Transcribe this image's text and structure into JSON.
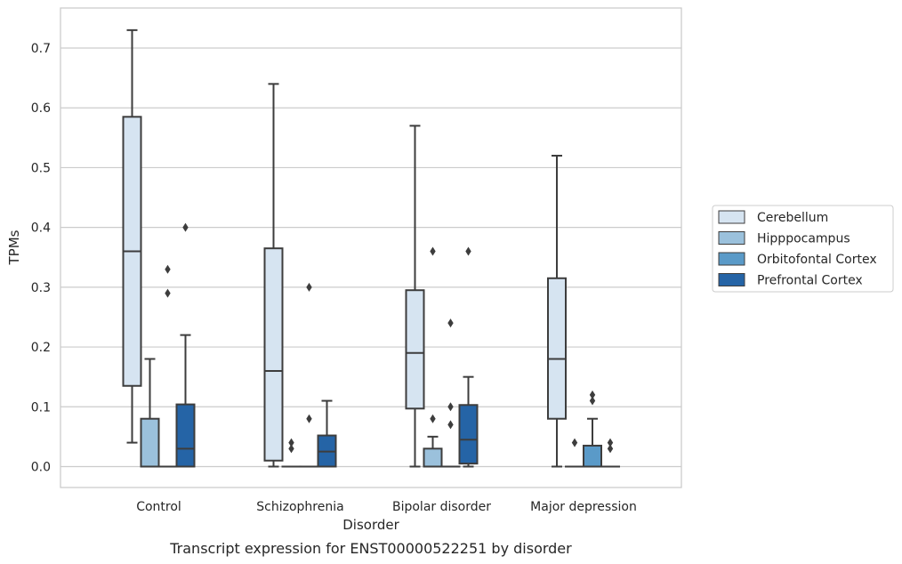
{
  "chart_data": {
    "type": "box",
    "caption": "Transcript expression for ENST00000522251 by disorder",
    "xlabel": "Disorder",
    "ylabel": "TPMs",
    "categories": [
      "Control",
      "Schizophrenia",
      "Bipolar disorder",
      "Major depression"
    ],
    "ylim": [
      -0.035,
      0.767
    ],
    "yticks": [
      0.0,
      0.1,
      0.2,
      0.3,
      0.4,
      0.5,
      0.6,
      0.7
    ],
    "ytick_labels": [
      "0.0",
      "0.1",
      "0.2",
      "0.3",
      "0.4",
      "0.5",
      "0.6",
      "0.7"
    ],
    "grid": "horizontal",
    "legend": {
      "placement": "right"
    },
    "series": [
      {
        "name": "Cerebellum",
        "color": "#d6e4f1",
        "boxes": [
          {
            "whislo": 0.04,
            "q1": 0.135,
            "median": 0.36,
            "q3": 0.585,
            "whishi": 0.73,
            "fliers": []
          },
          {
            "whislo": 0.0,
            "q1": 0.01,
            "median": 0.16,
            "q3": 0.365,
            "whishi": 0.64,
            "fliers": []
          },
          {
            "whislo": 0.0,
            "q1": 0.097,
            "median": 0.19,
            "q3": 0.295,
            "whishi": 0.57,
            "fliers": []
          },
          {
            "whislo": 0.0,
            "q1": 0.08,
            "median": 0.18,
            "q3": 0.315,
            "whishi": 0.52,
            "fliers": []
          }
        ]
      },
      {
        "name": "Hipppocampus",
        "color": "#9bc1dc",
        "boxes": [
          {
            "whislo": 0.0,
            "q1": 0.0,
            "median": 0.0,
            "q3": 0.08,
            "whishi": 0.18,
            "fliers": []
          },
          {
            "whislo": 0.0,
            "q1": 0.0,
            "median": 0.0,
            "q3": 0.0,
            "whishi": 0.0,
            "fliers": [
              0.04,
              0.03
            ]
          },
          {
            "whislo": 0.0,
            "q1": 0.0,
            "median": 0.0,
            "q3": 0.03,
            "whishi": 0.05,
            "fliers": [
              0.36,
              0.08
            ]
          },
          {
            "whislo": 0.0,
            "q1": 0.0,
            "median": 0.0,
            "q3": 0.0,
            "whishi": 0.0,
            "fliers": [
              0.04
            ]
          }
        ]
      },
      {
        "name": "Orbitofontal Cortex",
        "color": "#5a9ac8",
        "boxes": [
          {
            "whislo": 0.0,
            "q1": 0.0,
            "median": 0.0,
            "q3": 0.0,
            "whishi": 0.0,
            "fliers": [
              0.33,
              0.29
            ]
          },
          {
            "whislo": 0.0,
            "q1": 0.0,
            "median": 0.0,
            "q3": 0.0,
            "whishi": 0.0,
            "fliers": [
              0.3,
              0.08
            ]
          },
          {
            "whislo": 0.0,
            "q1": 0.0,
            "median": 0.0,
            "q3": 0.0,
            "whishi": 0.0,
            "fliers": [
              0.24,
              0.1,
              0.07
            ]
          },
          {
            "whislo": 0.0,
            "q1": 0.0,
            "median": 0.0,
            "q3": 0.035,
            "whishi": 0.08,
            "fliers": [
              0.12,
              0.11
            ]
          }
        ]
      },
      {
        "name": "Prefrontal Cortex",
        "color": "#2564a6",
        "boxes": [
          {
            "whislo": 0.0,
            "q1": 0.0,
            "median": 0.03,
            "q3": 0.104,
            "whishi": 0.22,
            "fliers": [
              0.4
            ]
          },
          {
            "whislo": 0.0,
            "q1": 0.0,
            "median": 0.025,
            "q3": 0.052,
            "whishi": 0.11,
            "fliers": []
          },
          {
            "whislo": 0.0,
            "q1": 0.005,
            "median": 0.045,
            "q3": 0.103,
            "whishi": 0.15,
            "fliers": [
              0.36
            ]
          },
          {
            "whislo": 0.0,
            "q1": 0.0,
            "median": 0.0,
            "q3": 0.0,
            "whishi": 0.0,
            "fliers": [
              0.04,
              0.03
            ]
          }
        ]
      }
    ]
  }
}
